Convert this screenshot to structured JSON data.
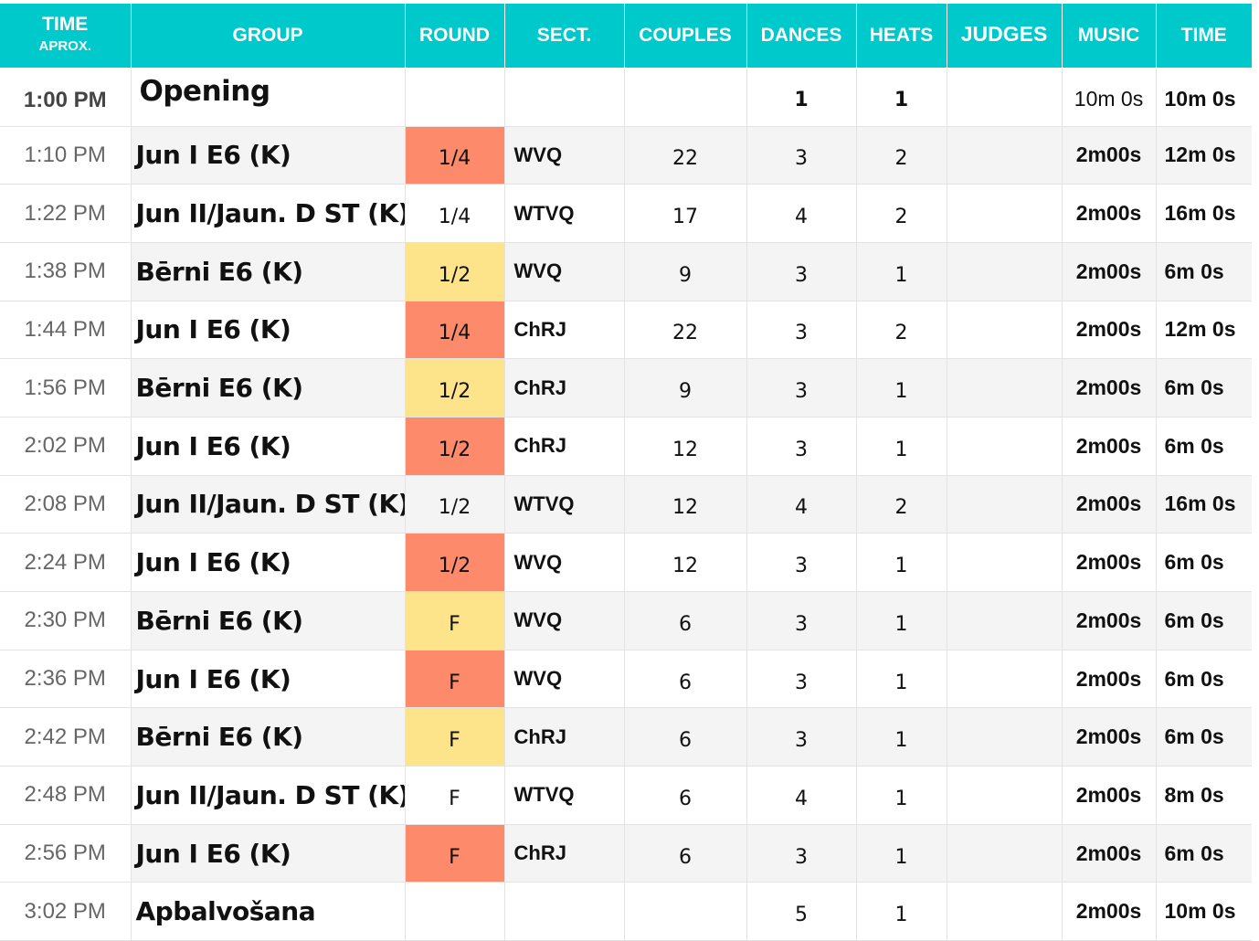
{
  "header": {
    "time": "TIME",
    "time_sub": "APROX.",
    "group": "GROUP",
    "round": "ROUND",
    "sect": "SECT.",
    "couples": "COUPLES",
    "dances": "DANCES",
    "heats": "HEATS",
    "judges": "JUDGES",
    "music": "MUSIC",
    "total": "TIME"
  },
  "colors": {
    "header_bg": "#00c9cc",
    "round_red": "#fd8a6a",
    "round_yellow": "#fde38a"
  },
  "rows": [
    {
      "time": "1:00 PM",
      "group": "Opening",
      "round": "",
      "round_color": "",
      "sect": "",
      "couples": "",
      "dances": "1",
      "heats": "1",
      "judges": "",
      "music": "10m 0s",
      "total": "10m 0s"
    },
    {
      "time": "1:10 PM",
      "group": "Jun I E6 (K)",
      "round": "1/4",
      "round_color": "red",
      "sect": "WVQ",
      "couples": "22",
      "dances": "3",
      "heats": "2",
      "judges": "",
      "music": "2m00s",
      "total": "12m 0s"
    },
    {
      "time": "1:22 PM",
      "group": "Jun II/Jaun. D ST (K)",
      "round": "1/4",
      "round_color": "",
      "sect": "WTVQ",
      "couples": "17",
      "dances": "4",
      "heats": "2",
      "judges": "",
      "music": "2m00s",
      "total": "16m 0s"
    },
    {
      "time": "1:38 PM",
      "group": "Bērni E6 (K)",
      "round": "1/2",
      "round_color": "yellow",
      "sect": "WVQ",
      "couples": "9",
      "dances": "3",
      "heats": "1",
      "judges": "",
      "music": "2m00s",
      "total": "6m 0s"
    },
    {
      "time": "1:44 PM",
      "group": "Jun I E6 (K)",
      "round": "1/4",
      "round_color": "red",
      "sect": "ChRJ",
      "couples": "22",
      "dances": "3",
      "heats": "2",
      "judges": "",
      "music": "2m00s",
      "total": "12m 0s"
    },
    {
      "time": "1:56 PM",
      "group": "Bērni E6 (K)",
      "round": "1/2",
      "round_color": "yellow",
      "sect": "ChRJ",
      "couples": "9",
      "dances": "3",
      "heats": "1",
      "judges": "",
      "music": "2m00s",
      "total": "6m 0s"
    },
    {
      "time": "2:02 PM",
      "group": "Jun I E6 (K)",
      "round": "1/2",
      "round_color": "red",
      "sect": "ChRJ",
      "couples": "12",
      "dances": "3",
      "heats": "1",
      "judges": "",
      "music": "2m00s",
      "total": "6m 0s"
    },
    {
      "time": "2:08 PM",
      "group": "Jun II/Jaun. D ST (K)",
      "round": "1/2",
      "round_color": "",
      "sect": "WTVQ",
      "couples": "12",
      "dances": "4",
      "heats": "2",
      "judges": "",
      "music": "2m00s",
      "total": "16m 0s"
    },
    {
      "time": "2:24 PM",
      "group": "Jun I E6 (K)",
      "round": "1/2",
      "round_color": "red",
      "sect": "WVQ",
      "couples": "12",
      "dances": "3",
      "heats": "1",
      "judges": "",
      "music": "2m00s",
      "total": "6m 0s"
    },
    {
      "time": "2:30 PM",
      "group": "Bērni E6 (K)",
      "round": "F",
      "round_color": "yellow",
      "sect": "WVQ",
      "couples": "6",
      "dances": "3",
      "heats": "1",
      "judges": "",
      "music": "2m00s",
      "total": "6m 0s"
    },
    {
      "time": "2:36 PM",
      "group": "Jun I E6 (K)",
      "round": "F",
      "round_color": "red",
      "sect": "WVQ",
      "couples": "6",
      "dances": "3",
      "heats": "1",
      "judges": "",
      "music": "2m00s",
      "total": "6m 0s"
    },
    {
      "time": "2:42 PM",
      "group": "Bērni E6 (K)",
      "round": "F",
      "round_color": "yellow",
      "sect": "ChRJ",
      "couples": "6",
      "dances": "3",
      "heats": "1",
      "judges": "",
      "music": "2m00s",
      "total": "6m 0s"
    },
    {
      "time": "2:48 PM",
      "group": "Jun II/Jaun. D ST (K)",
      "round": "F",
      "round_color": "",
      "sect": "WTVQ",
      "couples": "6",
      "dances": "4",
      "heats": "1",
      "judges": "",
      "music": "2m00s",
      "total": "8m 0s"
    },
    {
      "time": "2:56 PM",
      "group": "Jun I E6 (K)",
      "round": "F",
      "round_color": "red",
      "sect": "ChRJ",
      "couples": "6",
      "dances": "3",
      "heats": "1",
      "judges": "",
      "music": "2m00s",
      "total": "6m 0s"
    },
    {
      "time": "3:02 PM",
      "group": "Apbalvošana",
      "round": "",
      "round_color": "",
      "sect": "",
      "couples": "",
      "dances": "5",
      "heats": "1",
      "judges": "",
      "music": "2m00s",
      "total": "10m 0s"
    }
  ]
}
